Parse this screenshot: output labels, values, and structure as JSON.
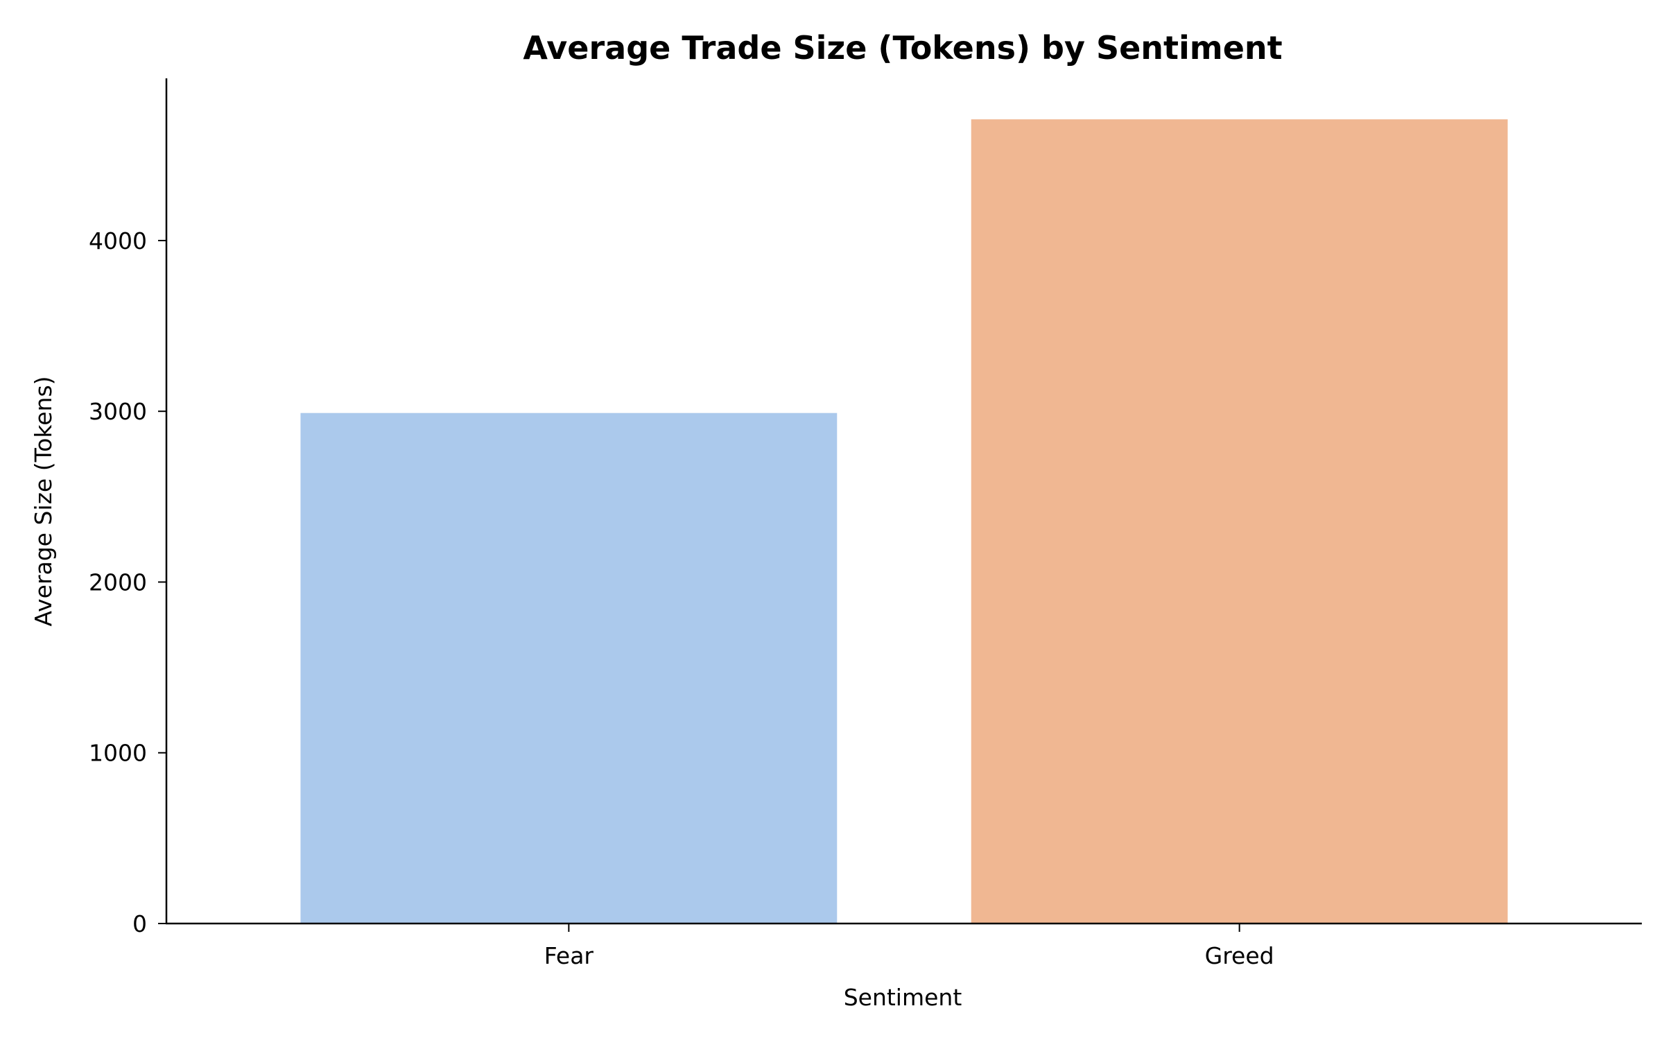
{
  "chart_data": {
    "type": "bar",
    "title": "Average Trade Size (Tokens) by Sentiment",
    "xlabel": "Sentiment",
    "ylabel": "Average Size (Tokens)",
    "categories": [
      "Fear",
      "Greed"
    ],
    "values": [
      2990,
      4710
    ],
    "colors": [
      "#abc9ec",
      "#f0b792"
    ],
    "ylim": [
      0,
      4950
    ],
    "yticks": [
      0,
      1000,
      2000,
      3000,
      4000
    ],
    "grid": false,
    "legend": "none"
  }
}
